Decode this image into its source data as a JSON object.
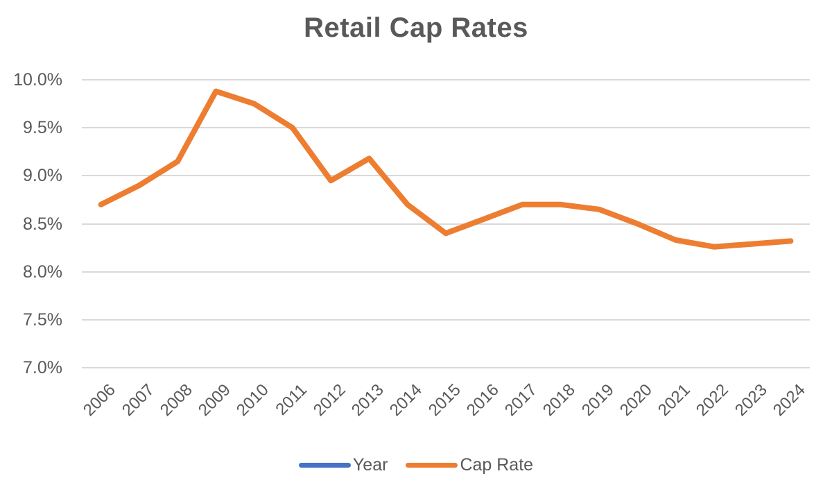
{
  "title": "Retail Cap Rates",
  "colors": {
    "accent_blue": "#4472C4",
    "accent_orange": "#ED7D31",
    "text": "#595959",
    "gridline": "#D9D9D9",
    "background": "#FFFFFF"
  },
  "legend": {
    "position": "bottom",
    "items": [
      {
        "label": "Year",
        "color": "#4472C4"
      },
      {
        "label": "Cap Rate",
        "color": "#ED7D31"
      }
    ]
  },
  "chart_data": {
    "type": "line",
    "title": "Retail Cap Rates",
    "categories": [
      "2006",
      "2007",
      "2008",
      "2009",
      "2010",
      "2011",
      "2012",
      "2013",
      "2014",
      "2015",
      "2016",
      "2017",
      "2018",
      "2019",
      "2020",
      "2021",
      "2022",
      "2023",
      "2024"
    ],
    "series": [
      {
        "name": "Year",
        "color": "#4472C4",
        "visible_in_plot": false,
        "values": []
      },
      {
        "name": "Cap Rate",
        "color": "#ED7D31",
        "visible_in_plot": true,
        "values": [
          8.7,
          8.9,
          9.15,
          9.88,
          9.75,
          9.5,
          8.95,
          9.18,
          8.7,
          8.4,
          8.55,
          8.7,
          8.7,
          8.65,
          8.5,
          8.33,
          8.26,
          8.29,
          8.32
        ]
      }
    ],
    "units": "percent",
    "ylim": [
      7.0,
      10.0
    ],
    "y_tick_step": 0.5,
    "y_tick_labels": [
      "10.0%",
      "9.5%",
      "9.0%",
      "8.5%",
      "8.0%",
      "7.5%",
      "7.0%"
    ],
    "y_tick_values": [
      10.0,
      9.5,
      9.0,
      8.5,
      8.0,
      7.5,
      7.0
    ],
    "grid": "horizontal",
    "x_tick_rotation_deg": 45,
    "legend_position": "bottom"
  }
}
